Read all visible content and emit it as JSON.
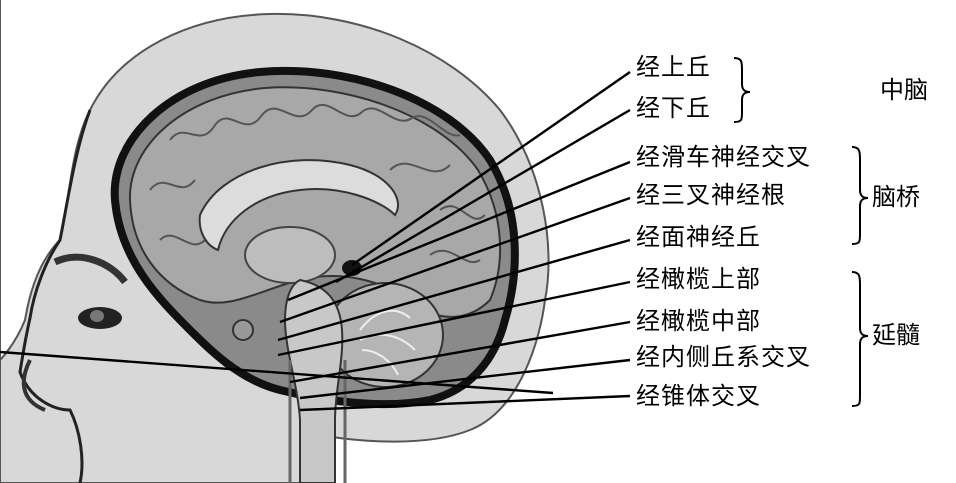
{
  "labels": {
    "superior_colliculus": "经上丘",
    "inferior_colliculus": "经下丘",
    "trochlear_decussation": "经滑车神经交叉",
    "trigeminal_root": "经三叉神经根",
    "facial_colliculus": "经面神经丘",
    "olive_upper": "经橄榄上部",
    "olive_middle": "经橄榄中部",
    "medial_lemniscus_decussation": "经内侧丘系交叉",
    "pyramidal_decussation": "经锥体交叉"
  },
  "groups": {
    "midbrain": "中脑",
    "pons": "脑桥",
    "medulla": "延髓"
  },
  "colors": {
    "ink": "#000000",
    "skin": "#d8d8d8",
    "cortex": "#9a9a9a",
    "dark": "#3a3a3a"
  }
}
